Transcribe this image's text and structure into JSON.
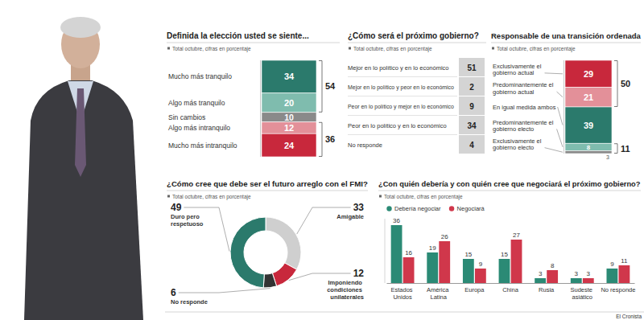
{
  "chart_data": [
    {
      "type": "bar",
      "title": "Definida la elección usted se siente...",
      "subtitle": "Total octubre, cifras en porcentaje",
      "stacked": true,
      "data_labels": true,
      "tick_labels": false,
      "categories": [
        "Mucho más tranquilo",
        "Algo más tranquilo",
        "Sin cambios",
        "Algo más intranquilo",
        "Mucho más intranquilo"
      ],
      "values": [
        34,
        20,
        10,
        12,
        24
      ],
      "colors": [
        "#2b7a6c",
        "#7fbcae",
        "#8a8a8a",
        "#e39099",
        "#c8283c"
      ],
      "ylim": [
        0,
        100
      ],
      "group_totals": [
        {
          "value": 54,
          "members": [
            "Mucho más tranquilo",
            "Algo más tranquilo"
          ]
        },
        {
          "value": 36,
          "members": [
            "Algo más intranquilo",
            "Mucho más intranquilo"
          ]
        }
      ]
    },
    {
      "type": "table",
      "title": "¿Cómo será el próximo gobierno?",
      "subtitle": "Total octubre, cifras en porcentaje",
      "categories": [
        "Mejor en lo político y en lo económico",
        "Mejor en lo político y peor en lo económico",
        "Peor en lo político y mejor en lo económico",
        "Peor en lo político y en lo económico",
        "No responde"
      ],
      "values": [
        51,
        2,
        9,
        34,
        4
      ]
    },
    {
      "type": "bar",
      "title": "Responsable de una transición ordenada",
      "subtitle": "Total octubre, cifras en porcentaje",
      "stacked": true,
      "data_labels": true,
      "tick_labels": false,
      "categories": [
        "Exclusivamente el gobierno actual",
        "Predominantemente el gobierno actual",
        "En igual medida ambos",
        "Predominantemente el gobierno electo",
        "Exclusivamente el gobierno electo"
      ],
      "values": [
        29,
        21,
        39,
        8,
        3
      ],
      "colors": [
        "#c8283c",
        "#e39099",
        "#2b7a6c",
        "#7fbcae",
        "#8a8a8a"
      ],
      "ylim": [
        0,
        100
      ],
      "group_totals": [
        {
          "value": 50,
          "members": [
            "Exclusivamente el gobierno actual",
            "Predominantemente el gobierno actual"
          ]
        },
        {
          "value": 11,
          "members": [
            "Predominantemente el gobierno electo",
            "Exclusivamente el gobierno electo"
          ]
        }
      ]
    },
    {
      "type": "pie",
      "title": "¿Cómo cree que debe ser el futuro arreglo con el FMI?",
      "subtitle": "Total octubre, cifras en porcentaje",
      "data_labels": true,
      "categories": [
        "Amigable",
        "Imponiendo condiciones unilaterales",
        "No responde",
        "Duro pero respetuoso"
      ],
      "values": [
        33,
        12,
        6,
        49
      ],
      "colors": [
        "#cfcfcf",
        "#c8283c",
        "#333333",
        "#2b7a6c"
      ]
    },
    {
      "type": "bar",
      "title": "¿Con quién debería y con quién cree que negociará el próximo gobierno?",
      "subtitle": "Total octubre, cifras en porcentaje",
      "data_labels": true,
      "tick_labels": "x",
      "legend": "top-left",
      "categories": [
        "Estados Unidos",
        "América Latina",
        "Europa",
        "China",
        "Rusia",
        "Sudeste asiático",
        "No responde"
      ],
      "series": [
        {
          "name": "Debería negociar",
          "color": "#2b8a75",
          "values": [
            36,
            19,
            15,
            15,
            3,
            3,
            9
          ]
        },
        {
          "name": "Negociará",
          "color": "#d0374b",
          "values": [
            16,
            26,
            9,
            27,
            8,
            3,
            11
          ]
        }
      ],
      "ylim": [
        0,
        40
      ]
    }
  ],
  "source": "El Cronista"
}
